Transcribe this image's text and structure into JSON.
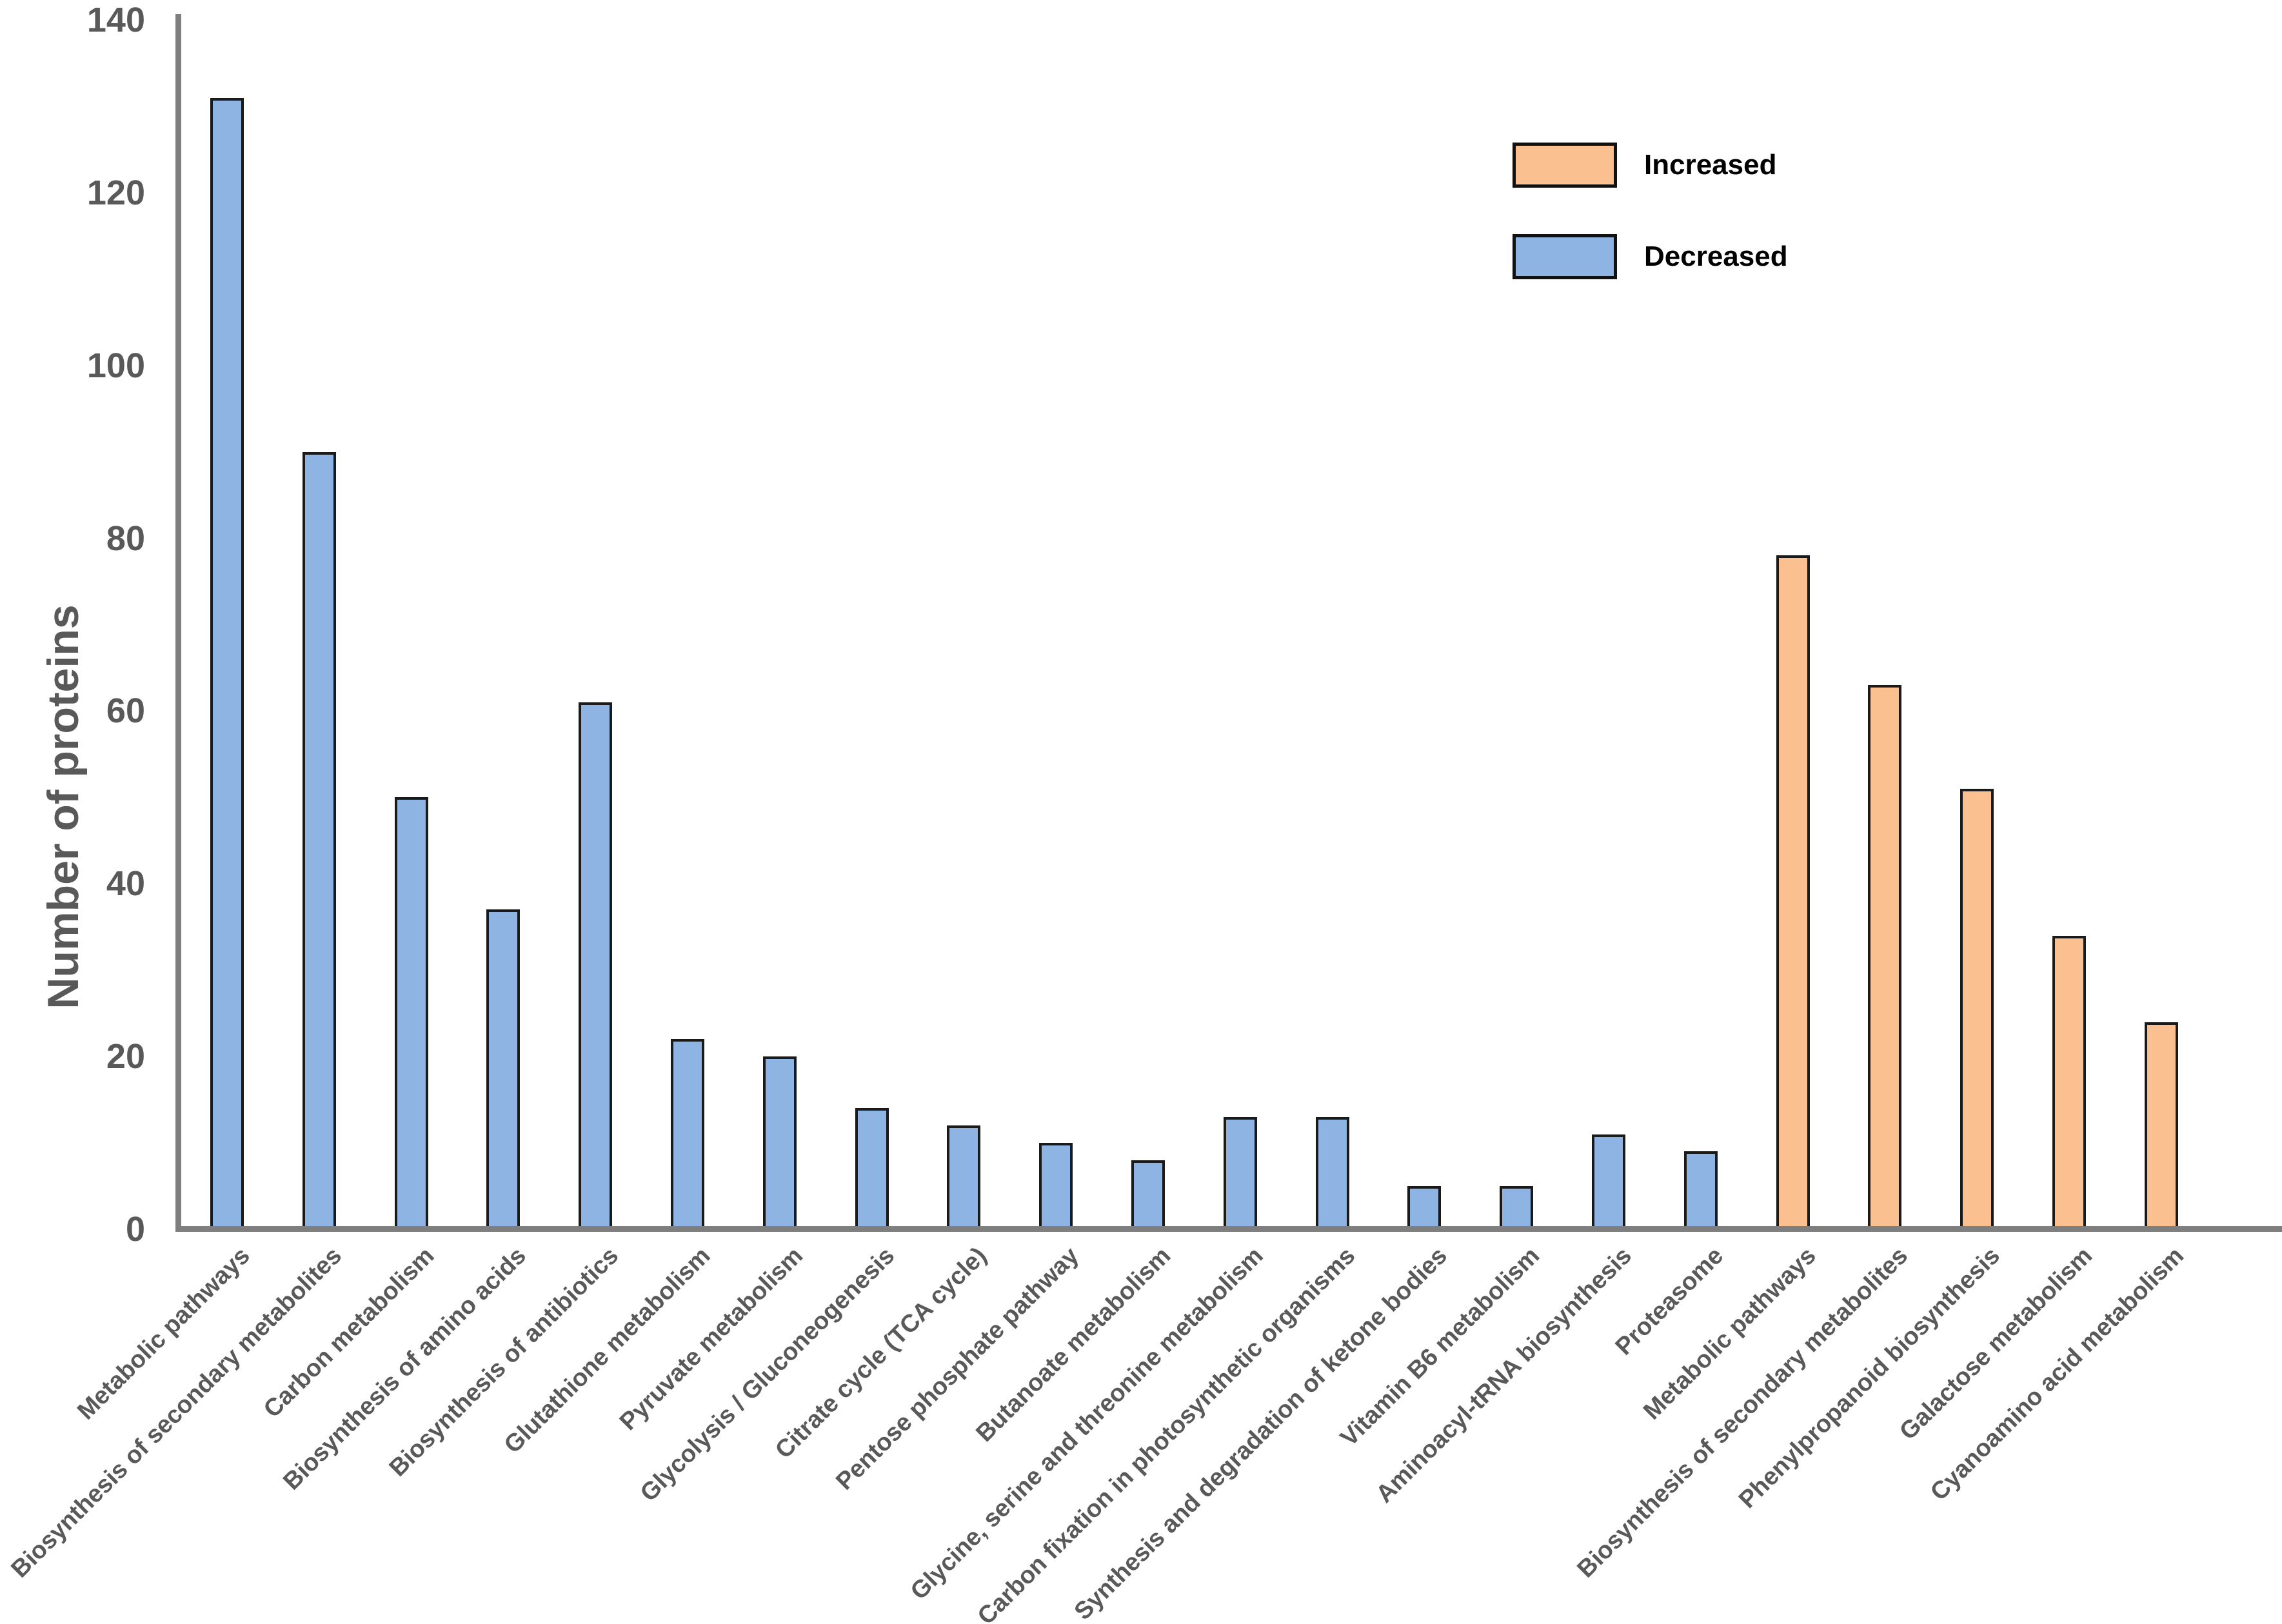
{
  "chart_data": {
    "type": "bar",
    "title": "",
    "xlabel": "",
    "ylabel": "Number of proteins",
    "ylim": [
      0,
      140
    ],
    "yticks": [
      0,
      20,
      40,
      60,
      80,
      100,
      120,
      140
    ],
    "grid": false,
    "legend": {
      "position": "top-right",
      "entries": [
        {
          "label": "Increased",
          "color": "#FAC090"
        },
        {
          "label": "Decreased",
          "color": "#8DB4E2"
        }
      ]
    },
    "series_colors": {
      "Decreased": "#8DB4E2",
      "Increased": "#FAC090"
    },
    "bar_border_color": "#1a1a1a",
    "axis_color": "#7f7f7f",
    "text_color": "#595959",
    "bars": [
      {
        "label": "Metabolic pathways",
        "value": 131,
        "series": "Decreased"
      },
      {
        "label": "Biosynthesis of secondary metabolites",
        "value": 90,
        "series": "Decreased"
      },
      {
        "label": "Carbon metabolism",
        "value": 50,
        "series": "Decreased"
      },
      {
        "label": "Biosynthesis of amino acids",
        "value": 37,
        "series": "Decreased"
      },
      {
        "label": "Biosynthesis of antibiotics",
        "value": 61,
        "series": "Decreased"
      },
      {
        "label": "Glutathione metabolism",
        "value": 22,
        "series": "Decreased"
      },
      {
        "label": "Pyruvate metabolism",
        "value": 20,
        "series": "Decreased"
      },
      {
        "label": "Glycolysis / Gluconeogenesis",
        "value": 14,
        "series": "Decreased"
      },
      {
        "label": "Citrate cycle (TCA cycle)",
        "value": 12,
        "series": "Decreased"
      },
      {
        "label": "Pentose phosphate pathway",
        "value": 10,
        "series": "Decreased"
      },
      {
        "label": "Butanoate metabolism",
        "value": 8,
        "series": "Decreased"
      },
      {
        "label": "Glycine, serine and threonine metabolism",
        "value": 13,
        "series": "Decreased"
      },
      {
        "label": "Carbon fixation in photosynthetic organisms",
        "value": 13,
        "series": "Decreased"
      },
      {
        "label": "Synthesis and degradation of ketone bodies",
        "value": 5,
        "series": "Decreased"
      },
      {
        "label": "Vitamin B6 metabolism",
        "value": 5,
        "series": "Decreased"
      },
      {
        "label": "Aminoacyl-tRNA biosynthesis",
        "value": 11,
        "series": "Decreased"
      },
      {
        "label": "Proteasome",
        "value": 9,
        "series": "Decreased"
      },
      {
        "label": "Metabolic pathways",
        "value": 78,
        "series": "Increased"
      },
      {
        "label": "Biosynthesis of secondary metabolites",
        "value": 63,
        "series": "Increased"
      },
      {
        "label": "Phenylpropanoid biosynthesis",
        "value": 51,
        "series": "Increased"
      },
      {
        "label": "Galactose metabolism",
        "value": 34,
        "series": "Increased"
      },
      {
        "label": "Cyanoamino acid metabolism",
        "value": 24,
        "series": "Increased"
      }
    ]
  }
}
